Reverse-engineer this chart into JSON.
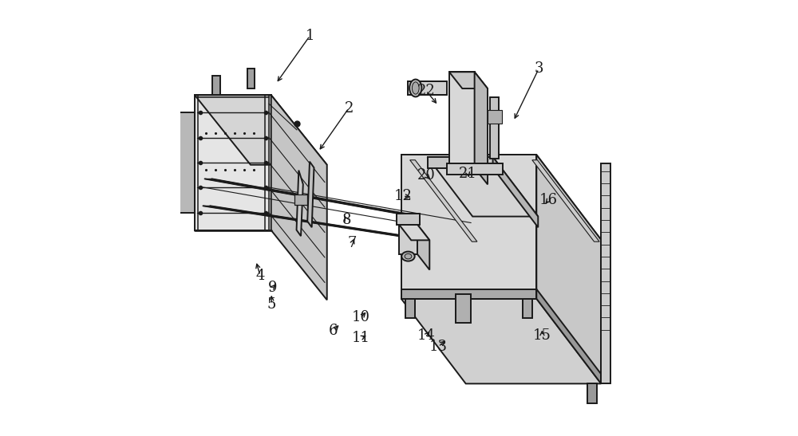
{
  "bg_color": "#ffffff",
  "lc": "#1a1a1a",
  "lw": 1.4,
  "tlw": 0.8,
  "fs": 13,
  "label_data": {
    "1": [
      0.296,
      0.082,
      0.218,
      0.192
    ],
    "2": [
      0.385,
      0.248,
      0.315,
      0.348
    ],
    "3": [
      0.82,
      0.158,
      0.762,
      0.278
    ],
    "4": [
      0.182,
      0.632,
      0.172,
      0.598
    ],
    "5": [
      0.208,
      0.698,
      0.208,
      0.672
    ],
    "6": [
      0.35,
      0.758,
      0.366,
      0.742
    ],
    "7": [
      0.393,
      0.558,
      0.4,
      0.542
    ],
    "8": [
      0.38,
      0.505,
      0.372,
      0.49
    ],
    "9": [
      0.21,
      0.66,
      0.22,
      0.648
    ],
    "10": [
      0.413,
      0.728,
      0.428,
      0.712
    ],
    "11": [
      0.413,
      0.775,
      0.43,
      0.768
    ],
    "12": [
      0.509,
      0.45,
      0.532,
      0.452
    ],
    "13": [
      0.59,
      0.795,
      0.61,
      0.778
    ],
    "14": [
      0.562,
      0.77,
      0.574,
      0.756
    ],
    "15": [
      0.828,
      0.77,
      0.828,
      0.752
    ],
    "16": [
      0.843,
      0.458,
      0.832,
      0.472
    ],
    "20": [
      0.562,
      0.402,
      0.576,
      0.415
    ],
    "21": [
      0.658,
      0.398,
      0.662,
      0.412
    ],
    "22": [
      0.562,
      0.208,
      0.59,
      0.242
    ]
  }
}
